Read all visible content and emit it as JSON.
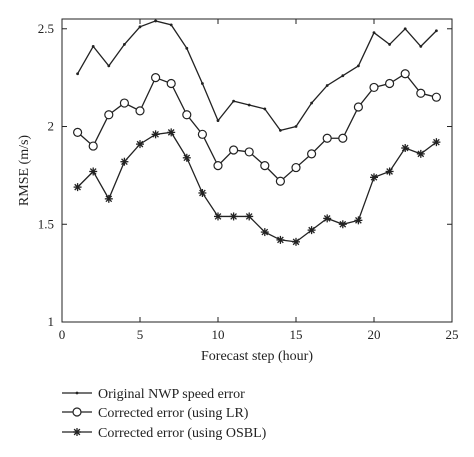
{
  "chart_data": {
    "type": "line",
    "xlabel": "Forecast step (hour)",
    "ylabel": "RMSE (m/s)",
    "xlim": [
      0,
      25
    ],
    "ylim": [
      1,
      2.55
    ],
    "xticks": [
      0,
      5,
      10,
      15,
      20,
      25
    ],
    "yticks": [
      1,
      1.5,
      2,
      2.5
    ],
    "xtick_labels": [
      "0",
      "5",
      "10",
      "15",
      "20",
      "25"
    ],
    "ytick_labels": [
      "1",
      "1.5",
      "2",
      "2.5"
    ],
    "grid": false,
    "legend_position": "bottom",
    "x": [
      1,
      2,
      3,
      4,
      5,
      6,
      7,
      8,
      9,
      10,
      11,
      12,
      13,
      14,
      15,
      16,
      17,
      18,
      19,
      20,
      21,
      22,
      23,
      24
    ],
    "series": [
      {
        "name": "Original NWP speed error",
        "marker": "dot",
        "color": "#222222",
        "values": [
          2.27,
          2.41,
          2.31,
          2.42,
          2.51,
          2.54,
          2.52,
          2.4,
          2.22,
          2.03,
          2.13,
          2.11,
          2.09,
          1.98,
          2.0,
          2.12,
          2.21,
          2.26,
          2.31,
          2.48,
          2.42,
          2.5,
          2.41,
          2.49
        ]
      },
      {
        "name": "Corrected error (using LR)",
        "marker": "circle",
        "color": "#222222",
        "values": [
          1.97,
          1.9,
          2.06,
          2.12,
          2.08,
          2.25,
          2.22,
          2.06,
          1.96,
          1.8,
          1.88,
          1.87,
          1.8,
          1.72,
          1.79,
          1.86,
          1.94,
          1.94,
          2.1,
          2.2,
          2.22,
          2.27,
          2.17,
          2.15
        ]
      },
      {
        "name": "Corrected error (using OSBL)",
        "marker": "star",
        "color": "#222222",
        "values": [
          1.69,
          1.77,
          1.63,
          1.82,
          1.91,
          1.96,
          1.97,
          1.84,
          1.66,
          1.54,
          1.54,
          1.54,
          1.46,
          1.42,
          1.41,
          1.47,
          1.53,
          1.5,
          1.52,
          1.74,
          1.77,
          1.89,
          1.86,
          1.92
        ]
      }
    ]
  }
}
